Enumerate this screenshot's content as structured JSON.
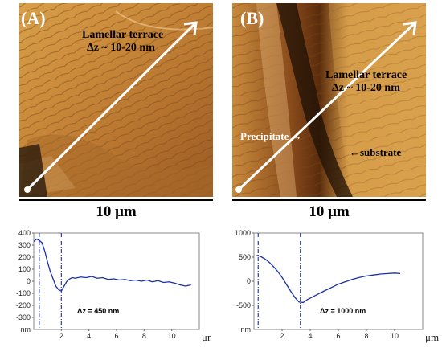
{
  "figure": {
    "panel_a": {
      "label": "(A)",
      "annotation_terrace": "Lamellar terrace",
      "annotation_dz": "Δz ~ 10-20 nm",
      "scale_bar": "10 μm"
    },
    "panel_b": {
      "label": "(B)",
      "annotation_terrace": "Lamellar terrace",
      "annotation_dz": "Δz ~ 10-20 nm",
      "annotation_precipitate": "Precipitate",
      "annotation_substrate": "substrate",
      "scale_bar": "10 μm"
    }
  },
  "chart_data": [
    {
      "type": "line",
      "ylabel": "nm",
      "xlabel": "μm",
      "xlim": [
        0,
        12
      ],
      "ylim": [
        -400,
        400
      ],
      "x_ticks": [
        "2",
        "4",
        "6",
        "8",
        "10"
      ],
      "y_ticks": [
        "400",
        "300",
        "200",
        "100",
        "0",
        "-100",
        "-200",
        "-300",
        "nm"
      ],
      "y_tick_values": [
        400,
        300,
        200,
        100,
        0,
        -100,
        -200,
        -300
      ],
      "annotation": "Δz = 450 nm",
      "vlines": [
        0.4,
        2.0
      ],
      "series": [
        {
          "x": [
            0.0,
            0.2,
            0.4,
            0.6,
            0.8,
            1.0,
            1.2,
            1.4,
            1.6,
            1.8,
            2.0,
            2.2,
            2.4,
            2.6,
            2.8,
            3.0,
            3.4,
            3.8,
            4.2,
            4.6,
            5.0,
            5.4,
            5.8,
            6.2,
            6.6,
            7.0,
            7.4,
            7.8,
            8.2,
            8.6,
            9.0,
            9.4,
            9.8,
            10.2,
            10.6,
            11.0,
            11.4
          ],
          "y": [
            330,
            350,
            340,
            320,
            250,
            160,
            80,
            20,
            -40,
            -70,
            -80,
            -40,
            0,
            20,
            30,
            25,
            35,
            30,
            40,
            25,
            30,
            15,
            20,
            10,
            15,
            5,
            10,
            0,
            10,
            -5,
            5,
            -10,
            -5,
            -15,
            -30,
            -40,
            -30
          ]
        }
      ]
    },
    {
      "type": "line",
      "ylabel": "nm",
      "xlabel": "μm",
      "xlim": [
        0,
        12
      ],
      "ylim": [
        -1000,
        1000
      ],
      "x_ticks": [
        "2",
        "4",
        "6",
        "8",
        "10"
      ],
      "y_ticks": [
        "1000",
        "500",
        "0",
        "-500",
        "nm"
      ],
      "y_tick_values": [
        1000,
        500,
        0,
        -500
      ],
      "annotation": "Δz = 1000 nm",
      "vlines": [
        0.3,
        3.3
      ],
      "series": [
        {
          "x": [
            0.2,
            0.5,
            0.8,
            1.1,
            1.4,
            1.7,
            2.0,
            2.3,
            2.6,
            2.9,
            3.2,
            3.5,
            3.8,
            4.2,
            4.6,
            5.0,
            5.5,
            6.0,
            6.5,
            7.0,
            7.5,
            8.0,
            8.5,
            9.0,
            9.5,
            10.0,
            10.4
          ],
          "y": [
            540,
            510,
            460,
            390,
            300,
            200,
            80,
            -60,
            -200,
            -330,
            -430,
            -440,
            -380,
            -320,
            -260,
            -200,
            -130,
            -60,
            -10,
            40,
            80,
            110,
            130,
            150,
            160,
            170,
            160
          ]
        }
      ]
    }
  ]
}
